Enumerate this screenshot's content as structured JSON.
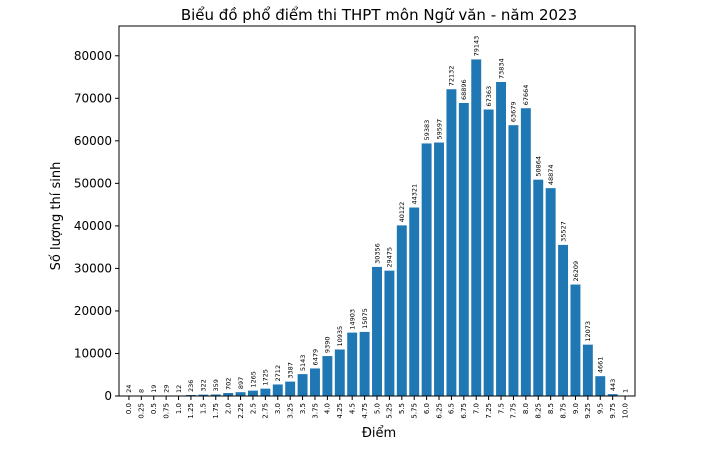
{
  "chart_data": {
    "type": "bar",
    "title": "Biểu đồ phổ điểm thi THPT môn Ngữ văn - năm 2023",
    "xlabel": "Điểm",
    "ylabel": "Số lượng thí sinh",
    "categories": [
      "0.0",
      "0.25",
      "0.5",
      "0.75",
      "1.0",
      "1.25",
      "1.5",
      "1.75",
      "2.0",
      "2.25",
      "2.5",
      "2.75",
      "3.0",
      "3.25",
      "3.5",
      "3.75",
      "4.0",
      "4.25",
      "4.5",
      "4.75",
      "5.0",
      "5.25",
      "5.5",
      "5.75",
      "6.0",
      "6.25",
      "6.5",
      "6.75",
      "7.0",
      "7.25",
      "7.5",
      "7.75",
      "8.0",
      "8.25",
      "8.5",
      "8.75",
      "9.0",
      "9.25",
      "9.5",
      "9.75",
      "10.0"
    ],
    "values": [
      24,
      8,
      19,
      29,
      12,
      236,
      322,
      359,
      702,
      897,
      1265,
      1725,
      2712,
      3387,
      5143,
      6479,
      9390,
      10935,
      14903,
      15075,
      30356,
      29475,
      40122,
      44321,
      59383,
      59597,
      72132,
      68896,
      79143,
      67363,
      73834,
      63679,
      67664,
      50864,
      48874,
      35527,
      26209,
      12073,
      4661,
      443,
      1
    ],
    "data_labels": [
      "24",
      "8",
      "19",
      "29",
      "12",
      "236",
      "322",
      "359",
      "702",
      "897",
      "1265",
      "1725",
      "2712",
      "3387",
      "5143",
      "6479",
      "9390",
      "10935",
      "14903",
      "15075",
      "30356",
      "29475",
      "40122",
      "44321",
      "59383",
      "59597",
      "72132",
      "68896",
      "79143",
      "67363",
      "73834",
      "63679",
      "67664",
      "50864",
      "48874",
      "35527",
      "26209",
      "12073",
      "4661",
      "443",
      "1"
    ],
    "yticks": [
      "0",
      "10000",
      "20000",
      "30000",
      "40000",
      "50000",
      "60000",
      "70000",
      "80000"
    ],
    "ylim": [
      0,
      87000
    ],
    "bar_color": "#1f77b4",
    "grid": false
  }
}
